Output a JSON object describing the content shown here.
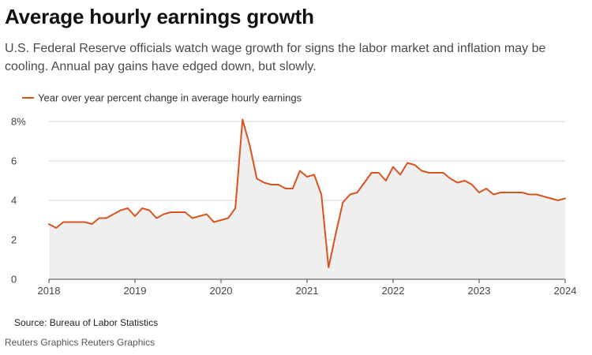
{
  "title": "Average hourly earnings growth",
  "subtitle": "U.S. Federal Reserve officials watch wage growth for signs the labor market and inflation may be cooling. Annual pay gains have edged down, but slowly.",
  "source": "Source: Bureau of Labor Statistics",
  "credit": "Reuters Graphics Reuters Graphics",
  "colors": {
    "line": "#d9531e",
    "area": "#efefef",
    "grid": "#d6d6d6",
    "axis": "#444444"
  },
  "chart_data": {
    "type": "area",
    "title": "Average hourly earnings growth",
    "legend": "top-left",
    "grid": true,
    "xlim": [
      "2018-01",
      "2024-01"
    ],
    "ylim": [
      0,
      8
    ],
    "x_ticks": [
      {
        "value": "2018-01",
        "label": "2018"
      },
      {
        "value": "2019-01",
        "label": "2019"
      },
      {
        "value": "2020-01",
        "label": "2020"
      },
      {
        "value": "2021-01",
        "label": "2021"
      },
      {
        "value": "2022-01",
        "label": "2022"
      },
      {
        "value": "2023-01",
        "label": "2023"
      },
      {
        "value": "2024-01",
        "label": "2024"
      }
    ],
    "y_ticks": [
      {
        "value": 8,
        "label": "8%"
      },
      {
        "value": 6,
        "label": "6"
      },
      {
        "value": 4,
        "label": "4"
      },
      {
        "value": 2,
        "label": "2"
      },
      {
        "value": 0,
        "label": "0"
      }
    ],
    "series": [
      {
        "name": "Year over year percent change in average hourly earnings",
        "points": [
          {
            "x": "2018-01",
            "y": 2.8
          },
          {
            "x": "2018-02",
            "y": 2.6
          },
          {
            "x": "2018-03",
            "y": 2.9
          },
          {
            "x": "2018-04",
            "y": 2.9
          },
          {
            "x": "2018-05",
            "y": 2.9
          },
          {
            "x": "2018-06",
            "y": 2.9
          },
          {
            "x": "2018-07",
            "y": 2.8
          },
          {
            "x": "2018-08",
            "y": 3.1
          },
          {
            "x": "2018-09",
            "y": 3.1
          },
          {
            "x": "2018-10",
            "y": 3.3
          },
          {
            "x": "2018-11",
            "y": 3.5
          },
          {
            "x": "2018-12",
            "y": 3.6
          },
          {
            "x": "2019-01",
            "y": 3.2
          },
          {
            "x": "2019-02",
            "y": 3.6
          },
          {
            "x": "2019-03",
            "y": 3.5
          },
          {
            "x": "2019-04",
            "y": 3.1
          },
          {
            "x": "2019-05",
            "y": 3.3
          },
          {
            "x": "2019-06",
            "y": 3.4
          },
          {
            "x": "2019-07",
            "y": 3.4
          },
          {
            "x": "2019-08",
            "y": 3.4
          },
          {
            "x": "2019-09",
            "y": 3.1
          },
          {
            "x": "2019-10",
            "y": 3.2
          },
          {
            "x": "2019-11",
            "y": 3.3
          },
          {
            "x": "2019-12",
            "y": 2.9
          },
          {
            "x": "2020-01",
            "y": 3.0
          },
          {
            "x": "2020-02",
            "y": 3.1
          },
          {
            "x": "2020-03",
            "y": 3.6
          },
          {
            "x": "2020-04",
            "y": 8.1
          },
          {
            "x": "2020-05",
            "y": 6.8
          },
          {
            "x": "2020-06",
            "y": 5.1
          },
          {
            "x": "2020-07",
            "y": 4.9
          },
          {
            "x": "2020-08",
            "y": 4.8
          },
          {
            "x": "2020-09",
            "y": 4.8
          },
          {
            "x": "2020-10",
            "y": 4.6
          },
          {
            "x": "2020-11",
            "y": 4.6
          },
          {
            "x": "2020-12",
            "y": 5.5
          },
          {
            "x": "2021-01",
            "y": 5.2
          },
          {
            "x": "2021-02",
            "y": 5.3
          },
          {
            "x": "2021-03",
            "y": 4.3
          },
          {
            "x": "2021-04",
            "y": 0.6
          },
          {
            "x": "2021-05",
            "y": 2.3
          },
          {
            "x": "2021-06",
            "y": 3.9
          },
          {
            "x": "2021-07",
            "y": 4.3
          },
          {
            "x": "2021-08",
            "y": 4.4
          },
          {
            "x": "2021-09",
            "y": 4.9
          },
          {
            "x": "2021-10",
            "y": 5.4
          },
          {
            "x": "2021-11",
            "y": 5.4
          },
          {
            "x": "2021-12",
            "y": 5.0
          },
          {
            "x": "2022-01",
            "y": 5.7
          },
          {
            "x": "2022-02",
            "y": 5.3
          },
          {
            "x": "2022-03",
            "y": 5.9
          },
          {
            "x": "2022-04",
            "y": 5.8
          },
          {
            "x": "2022-05",
            "y": 5.5
          },
          {
            "x": "2022-06",
            "y": 5.4
          },
          {
            "x": "2022-07",
            "y": 5.4
          },
          {
            "x": "2022-08",
            "y": 5.4
          },
          {
            "x": "2022-09",
            "y": 5.1
          },
          {
            "x": "2022-10",
            "y": 4.9
          },
          {
            "x": "2022-11",
            "y": 5.0
          },
          {
            "x": "2022-12",
            "y": 4.8
          },
          {
            "x": "2023-01",
            "y": 4.4
          },
          {
            "x": "2023-02",
            "y": 4.6
          },
          {
            "x": "2023-03",
            "y": 4.3
          },
          {
            "x": "2023-04",
            "y": 4.4
          },
          {
            "x": "2023-05",
            "y": 4.4
          },
          {
            "x": "2023-06",
            "y": 4.4
          },
          {
            "x": "2023-07",
            "y": 4.4
          },
          {
            "x": "2023-08",
            "y": 4.3
          },
          {
            "x": "2023-09",
            "y": 4.3
          },
          {
            "x": "2023-10",
            "y": 4.2
          },
          {
            "x": "2023-11",
            "y": 4.1
          },
          {
            "x": "2023-12",
            "y": 4.0
          },
          {
            "x": "2024-01",
            "y": 4.1
          }
        ]
      }
    ]
  }
}
